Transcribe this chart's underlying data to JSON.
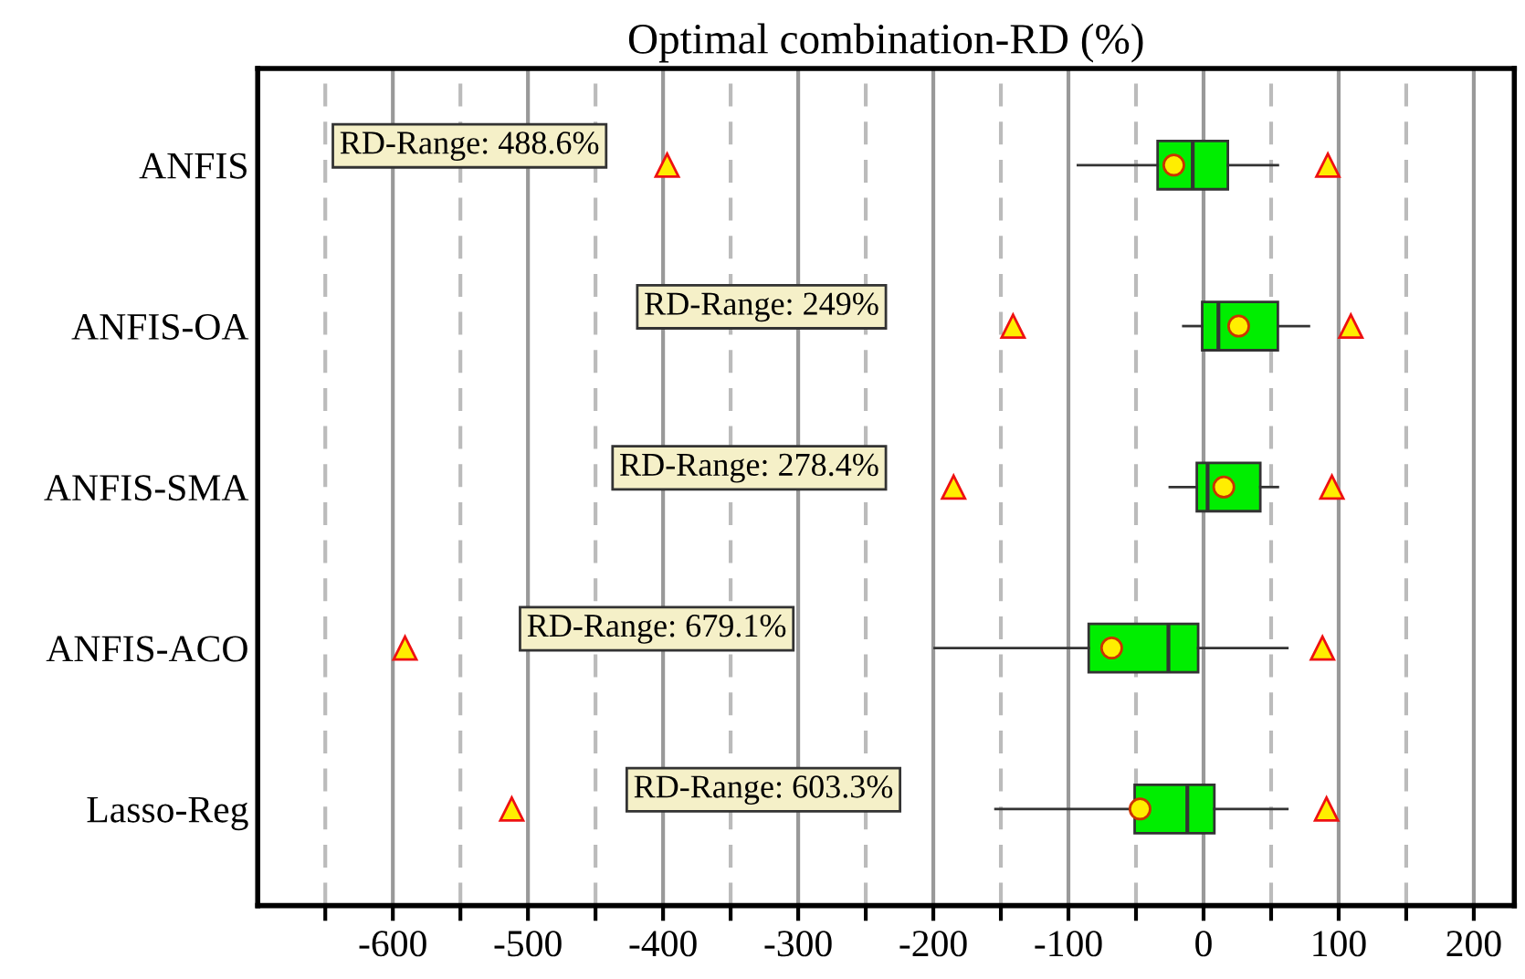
{
  "chart_data": {
    "type": "box",
    "orientation": "horizontal",
    "title": "Optimal combination-RD (%)",
    "categories": [
      "ANFIS",
      "ANFIS-OA",
      "ANFIS-SMA",
      "ANFIS-ACO",
      "Lasso-Reg"
    ],
    "series": [
      {
        "color": "#00ee00",
        "boxes": [
          {
            "low": -93,
            "q1": -34,
            "median": -8,
            "q3": 18,
            "high": 55,
            "mean": -22,
            "outliers": [
              -397,
              92
            ]
          },
          {
            "low": -15,
            "q1": -1,
            "median": 11,
            "q3": 55,
            "high": 78,
            "mean": 26,
            "outliers": [
              -141,
              109
            ]
          },
          {
            "low": -25,
            "q1": -5,
            "median": 3,
            "q3": 42,
            "high": 55,
            "mean": 15,
            "outliers": [
              -185,
              95
            ]
          },
          {
            "low": -199,
            "q1": -85,
            "median": -26,
            "q3": -4,
            "high": 62,
            "mean": -68,
            "outliers": [
              -591,
              88
            ]
          },
          {
            "low": -154,
            "q1": -51,
            "median": -12,
            "q3": 8,
            "high": 62,
            "mean": -47,
            "outliers": [
              -512,
              91
            ]
          }
        ]
      }
    ],
    "xlim": [
      -700,
      230
    ],
    "xticks": [
      {
        "value": -650,
        "label": null
      },
      -600,
      {
        "value": -550,
        "label": null
      },
      -500,
      {
        "value": -450,
        "label": null
      },
      -400,
      {
        "value": -350,
        "label": null
      },
      -300,
      {
        "value": -250,
        "label": null
      },
      -200,
      {
        "value": -150,
        "label": null
      },
      -100,
      {
        "value": -50,
        "label": null
      },
      0,
      {
        "value": 50,
        "label": null
      },
      100,
      {
        "value": 150,
        "label": null
      },
      200
    ],
    "grid": "x",
    "marker": "triangle",
    "annotations": [
      "RD-Range: 488.6%",
      "RD-Range: 249%",
      "RD-Range: 278.4%",
      "RD-Range: 679.1%",
      "RD-Range: 603.3%"
    ]
  }
}
